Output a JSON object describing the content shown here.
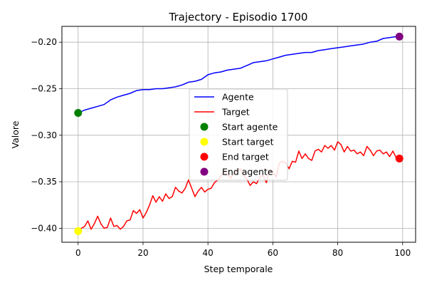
{
  "chart_data": {
    "type": "line",
    "title": "Trajectory - Episodio 1700",
    "xlabel": "Step temporale",
    "ylabel": "Valore",
    "xlim": [
      -5,
      104
    ],
    "ylim": [
      -0.415,
      -0.183
    ],
    "xticks": [
      0,
      20,
      40,
      60,
      80,
      100
    ],
    "yticks": [
      -0.4,
      -0.35,
      -0.3,
      -0.25,
      -0.2
    ],
    "grid": true,
    "legend_position": "center",
    "series": [
      {
        "name": "Agente",
        "color": "#0000ff",
        "x": [
          0,
          2,
          4,
          6,
          8,
          10,
          12,
          14,
          16,
          18,
          20,
          22,
          24,
          26,
          28,
          30,
          32,
          34,
          36,
          38,
          40,
          42,
          44,
          46,
          48,
          50,
          52,
          54,
          56,
          58,
          60,
          62,
          64,
          66,
          68,
          70,
          72,
          74,
          76,
          78,
          80,
          82,
          84,
          86,
          88,
          90,
          92,
          94,
          96,
          98,
          99
        ],
        "values": [
          -0.276,
          -0.273,
          -0.271,
          -0.269,
          -0.267,
          -0.262,
          -0.259,
          -0.257,
          -0.255,
          -0.252,
          -0.251,
          -0.251,
          -0.25,
          -0.25,
          -0.249,
          -0.248,
          -0.246,
          -0.243,
          -0.242,
          -0.24,
          -0.235,
          -0.233,
          -0.232,
          -0.23,
          -0.229,
          -0.228,
          -0.225,
          -0.222,
          -0.221,
          -0.22,
          -0.218,
          -0.216,
          -0.214,
          -0.213,
          -0.212,
          -0.211,
          -0.211,
          -0.209,
          -0.208,
          -0.207,
          -0.206,
          -0.205,
          -0.204,
          -0.203,
          -0.202,
          -0.2,
          -0.199,
          -0.196,
          -0.195,
          -0.194,
          -0.194
        ]
      },
      {
        "name": "Target",
        "color": "#ff0000",
        "x": [
          0,
          1,
          2,
          3,
          4,
          5,
          6,
          7,
          8,
          9,
          10,
          11,
          12,
          13,
          14,
          15,
          16,
          17,
          18,
          19,
          20,
          21,
          22,
          23,
          24,
          25,
          26,
          27,
          28,
          29,
          30,
          31,
          32,
          33,
          34,
          35,
          36,
          37,
          38,
          39,
          40,
          41,
          42,
          43,
          44,
          45,
          46,
          47,
          48,
          49,
          50,
          51,
          52,
          53,
          54,
          55,
          56,
          57,
          58,
          59,
          60,
          61,
          62,
          63,
          64,
          65,
          66,
          67,
          68,
          69,
          70,
          71,
          72,
          73,
          74,
          75,
          76,
          77,
          78,
          79,
          80,
          81,
          82,
          83,
          84,
          85,
          86,
          87,
          88,
          89,
          90,
          91,
          92,
          93,
          94,
          95,
          96,
          97,
          98,
          99
        ],
        "values": [
          -0.403,
          -0.4,
          -0.398,
          -0.392,
          -0.401,
          -0.395,
          -0.387,
          -0.395,
          -0.4,
          -0.399,
          -0.389,
          -0.398,
          -0.397,
          -0.401,
          -0.398,
          -0.392,
          -0.391,
          -0.381,
          -0.384,
          -0.38,
          -0.389,
          -0.383,
          -0.375,
          -0.365,
          -0.372,
          -0.366,
          -0.371,
          -0.363,
          -0.368,
          -0.366,
          -0.356,
          -0.36,
          -0.362,
          -0.357,
          -0.348,
          -0.357,
          -0.366,
          -0.36,
          -0.356,
          -0.361,
          -0.358,
          -0.357,
          -0.351,
          -0.348,
          -0.344,
          -0.338,
          -0.342,
          -0.346,
          -0.341,
          -0.338,
          -0.336,
          -0.343,
          -0.347,
          -0.354,
          -0.35,
          -0.352,
          -0.345,
          -0.343,
          -0.351,
          -0.338,
          -0.34,
          -0.345,
          -0.33,
          -0.328,
          -0.33,
          -0.336,
          -0.328,
          -0.329,
          -0.317,
          -0.325,
          -0.32,
          -0.325,
          -0.327,
          -0.317,
          -0.315,
          -0.318,
          -0.311,
          -0.314,
          -0.311,
          -0.316,
          -0.307,
          -0.31,
          -0.318,
          -0.312,
          -0.317,
          -0.316,
          -0.32,
          -0.318,
          -0.322,
          -0.312,
          -0.316,
          -0.322,
          -0.317,
          -0.316,
          -0.32,
          -0.318,
          -0.323,
          -0.317,
          -0.324,
          -0.325
        ]
      },
      {
        "name": "Start agente",
        "type": "scatter",
        "color": "#008000",
        "x": [
          0
        ],
        "values": [
          -0.276
        ]
      },
      {
        "name": "Start target",
        "type": "scatter",
        "color": "#ffff00",
        "x": [
          0
        ],
        "values": [
          -0.403
        ]
      },
      {
        "name": "End target",
        "type": "scatter",
        "color": "#ff0000",
        "x": [
          99
        ],
        "values": [
          -0.325
        ]
      },
      {
        "name": "End agente",
        "type": "scatter",
        "color": "#800080",
        "x": [
          99
        ],
        "values": [
          -0.194
        ]
      }
    ]
  }
}
